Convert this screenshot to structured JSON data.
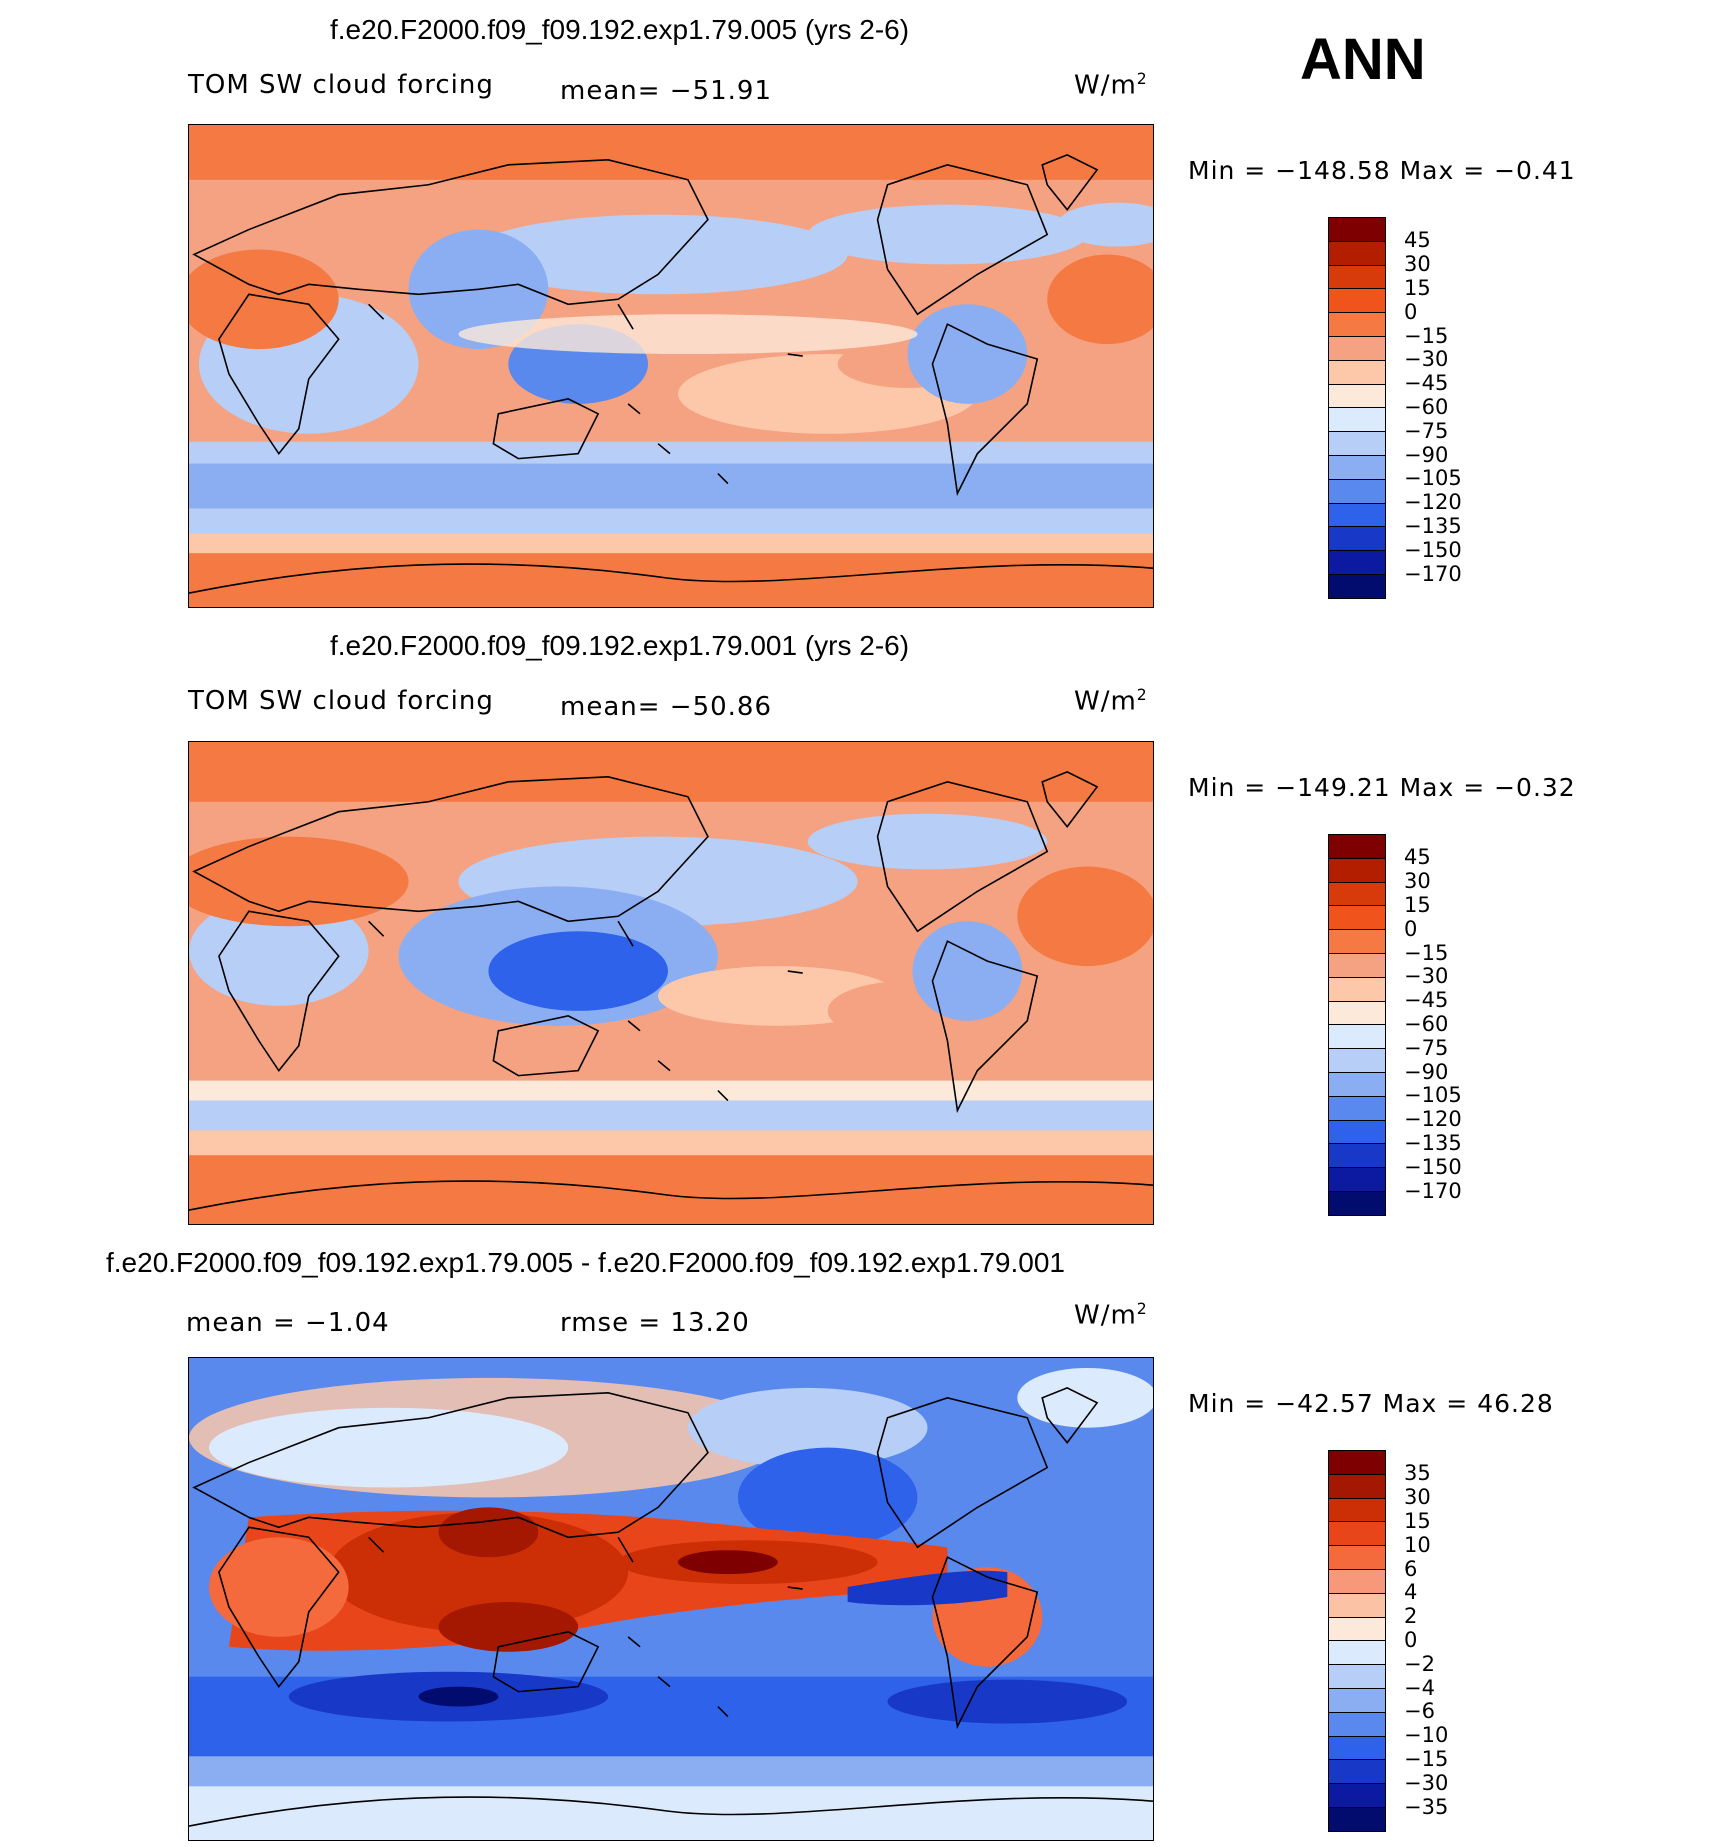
{
  "header": {
    "season": "ANN"
  },
  "panels": [
    {
      "id": "p1",
      "title": "f.e20.F2000.f09_f09.192.exp1.79.005 (yrs 2-6)",
      "field": "TOM SW cloud forcing",
      "mean": "mean= −51.91",
      "units": "W/m",
      "units_sup": "2",
      "minmax": "Min  =  −148.58  Max  =    −0.41",
      "palette": "model"
    },
    {
      "id": "p2",
      "title": "f.e20.F2000.f09_f09.192.exp1.79.001 (yrs 2-6)",
      "field": "TOM SW cloud forcing",
      "mean": "mean= −50.86",
      "units": "W/m",
      "units_sup": "2",
      "minmax": "Min  =  −149.21  Max  =    −0.32",
      "palette": "model"
    },
    {
      "id": "p3",
      "title": "f.e20.F2000.f09_f09.192.exp1.79.005 - f.e20.F2000.f09_f09.192.exp1.79.001",
      "mean": "mean  =    −1.04",
      "rmse": "rmse  =    13.20",
      "units": "W/m",
      "units_sup": "2",
      "minmax": "Min  =  −42.57  Max  =    46.28",
      "palette": "diff"
    }
  ],
  "colorbars": {
    "model": {
      "labels": [
        "45",
        "30",
        "15",
        "0",
        "−15",
        "−30",
        "−45",
        "−60",
        "−75",
        "−90",
        "−105",
        "−120",
        "−135",
        "−150",
        "−170"
      ],
      "colors": [
        "#7f0000",
        "#b31d00",
        "#d73a0b",
        "#f0531b",
        "#f47943",
        "#f4a281",
        "#fcc8a9",
        "#fde9d9",
        "#dbeafc",
        "#b7cef6",
        "#8aaef1",
        "#5a89ee",
        "#2e62ea",
        "#1838c8",
        "#0b1aa0",
        "#020b6e"
      ]
    },
    "diff": {
      "labels": [
        "35",
        "30",
        "15",
        "10",
        "6",
        "4",
        "2",
        "0",
        "−2",
        "−4",
        "−6",
        "−10",
        "−15",
        "−30",
        "−35"
      ],
      "colors": [
        "#7f0000",
        "#a41700",
        "#cc2e06",
        "#e8461a",
        "#f46a3c",
        "#f8987a",
        "#fcc2a6",
        "#fde9d9",
        "#dbeafc",
        "#b7cef6",
        "#8aaef1",
        "#5a89ee",
        "#2e62ea",
        "#1838c8",
        "#0b1aa0",
        "#020b6e"
      ]
    }
  }
}
